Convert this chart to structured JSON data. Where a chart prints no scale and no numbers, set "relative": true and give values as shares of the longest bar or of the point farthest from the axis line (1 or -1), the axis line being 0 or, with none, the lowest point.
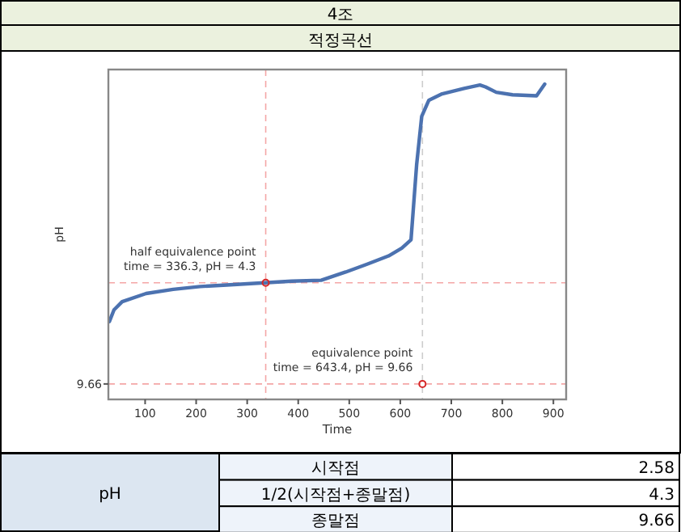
{
  "chart_data": {
    "type": "line",
    "title": "4조",
    "subtitle": "적정곡선",
    "xlabel": "Time",
    "ylabel": "pH",
    "relative": true,
    "xlim": [
      28,
      925
    ],
    "xticks": [
      100,
      200,
      300,
      400,
      500,
      600,
      700,
      800,
      900
    ],
    "series": [
      {
        "color": "#4c72b0",
        "x": [
          30,
          39,
          55,
          102,
          155,
          208,
          260,
          334,
          387,
          445,
          493,
          535,
          577,
          603,
          621,
          632,
          642,
          656,
          682,
          725,
          756,
          767,
          788,
          820,
          867,
          883
        ],
        "values": [
          0.247,
          0.284,
          0.31,
          0.336,
          0.349,
          0.358,
          0.363,
          0.37,
          0.375,
          0.378,
          0.404,
          0.429,
          0.455,
          0.48,
          0.506,
          0.744,
          0.898,
          0.949,
          0.969,
          0.986,
          0.997,
          0.991,
          0.974,
          0.966,
          0.963,
          1.0
        ]
      },
      {
        "type": "scatter",
        "color": "#d62728",
        "marker": "circle",
        "x": [
          336.3,
          643.4
        ],
        "values": [
          0.37,
          0.049
        ]
      }
    ],
    "ref_lines": [
      {
        "axis": "x",
        "value": 336.3,
        "color": "#f4a6a6",
        "line_style": "dashed"
      },
      {
        "axis": "x",
        "value": 643.4,
        "color": "#cccccc",
        "line_style": "dashed"
      },
      {
        "axis": "y",
        "value": 0.37,
        "color": "#f4a6a6",
        "line_style": "dashed"
      },
      {
        "axis": "y",
        "value": 0.049,
        "color": "#f4a6a6",
        "line_style": "dashed"
      }
    ],
    "annotations": [
      "9.66",
      {
        "text": "half equivalence point\ntime = 336.3, pH = 4.3",
        "x": 336.3,
        "y": 0.37
      },
      {
        "text": "equivalence point\ntime = 643.4, pH = 9.66",
        "x": 643.4,
        "y": 0.049
      },
      "pH",
      "시작점",
      "2.58",
      "1/2(시작점+종말점)",
      "4.3",
      "종말점",
      "9.66"
    ],
    "tick_labels": "x"
  }
}
